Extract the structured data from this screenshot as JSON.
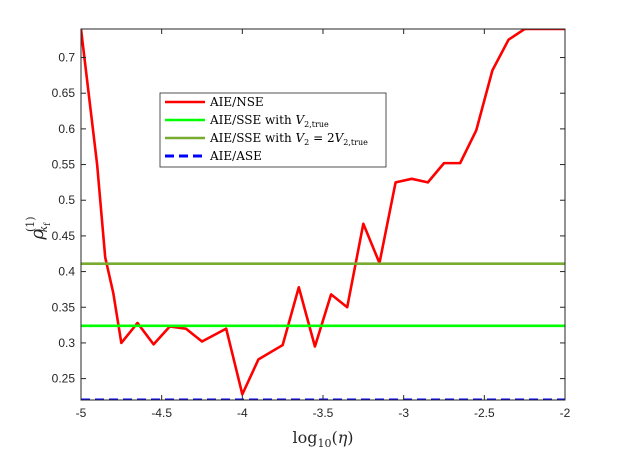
{
  "chart_data": {
    "type": "line",
    "xlabel": "log10(η)",
    "ylabel": "ρ(1)kf",
    "xlim": [
      -5,
      -2
    ],
    "ylim": [
      0.22,
      0.74
    ],
    "xticks": [
      -5,
      -4.5,
      -4,
      -3.5,
      -3,
      -2.5,
      -2
    ],
    "xtick_labels": [
      "-5",
      "-4.5",
      "-4",
      "-3.5",
      "-3",
      "-2.5",
      "-2"
    ],
    "yticks": [
      0.25,
      0.3,
      0.35,
      0.4,
      0.45,
      0.5,
      0.55,
      0.6,
      0.65,
      0.7
    ],
    "ytick_labels": [
      "0.25",
      "0.3",
      "0.35",
      "0.4",
      "0.45",
      "0.5",
      "0.55",
      "0.6",
      "0.65",
      "0.7"
    ],
    "grid": false,
    "legend_position": "top-center",
    "series": [
      {
        "name": "AIE/NSE",
        "color": "#ff0000",
        "style": "solid",
        "x": [
          -5,
          -4.9,
          -4.85,
          -4.8,
          -4.75,
          -4.65,
          -4.55,
          -4.45,
          -4.35,
          -4.25,
          -4.1,
          -4.0,
          -3.9,
          -3.75,
          -3.65,
          -3.55,
          -3.45,
          -3.35,
          -3.25,
          -3.15,
          -3.05,
          -2.95,
          -2.85,
          -2.75,
          -2.65,
          -2.55,
          -2.45,
          -2.35,
          -2.25,
          -2.15,
          -2.05,
          -2.0
        ],
        "y": [
          0.74,
          0.55,
          0.42,
          0.37,
          0.3,
          0.328,
          0.298,
          0.323,
          0.32,
          0.302,
          0.32,
          0.228,
          0.277,
          0.297,
          0.378,
          0.295,
          0.368,
          0.35,
          0.467,
          0.412,
          0.525,
          0.53,
          0.525,
          0.552,
          0.552,
          0.598,
          0.682,
          0.725,
          0.74,
          0.74,
          0.74,
          0.74
        ]
      },
      {
        "name": "AIE/SSE with V2,true",
        "color": "#00ff00",
        "style": "solid",
        "x": [
          -5,
          -2
        ],
        "y": [
          0.324,
          0.324
        ]
      },
      {
        "name": "AIE/SSE with V2 = 2V2,true",
        "color": "#77ac30",
        "style": "solid",
        "x": [
          -5,
          -2
        ],
        "y": [
          0.411,
          0.411
        ]
      },
      {
        "name": "AIE/ASE",
        "color": "#0000ff",
        "style": "dashed",
        "x": [
          -5,
          -2
        ],
        "y": [
          0.22,
          0.22
        ]
      }
    ]
  }
}
